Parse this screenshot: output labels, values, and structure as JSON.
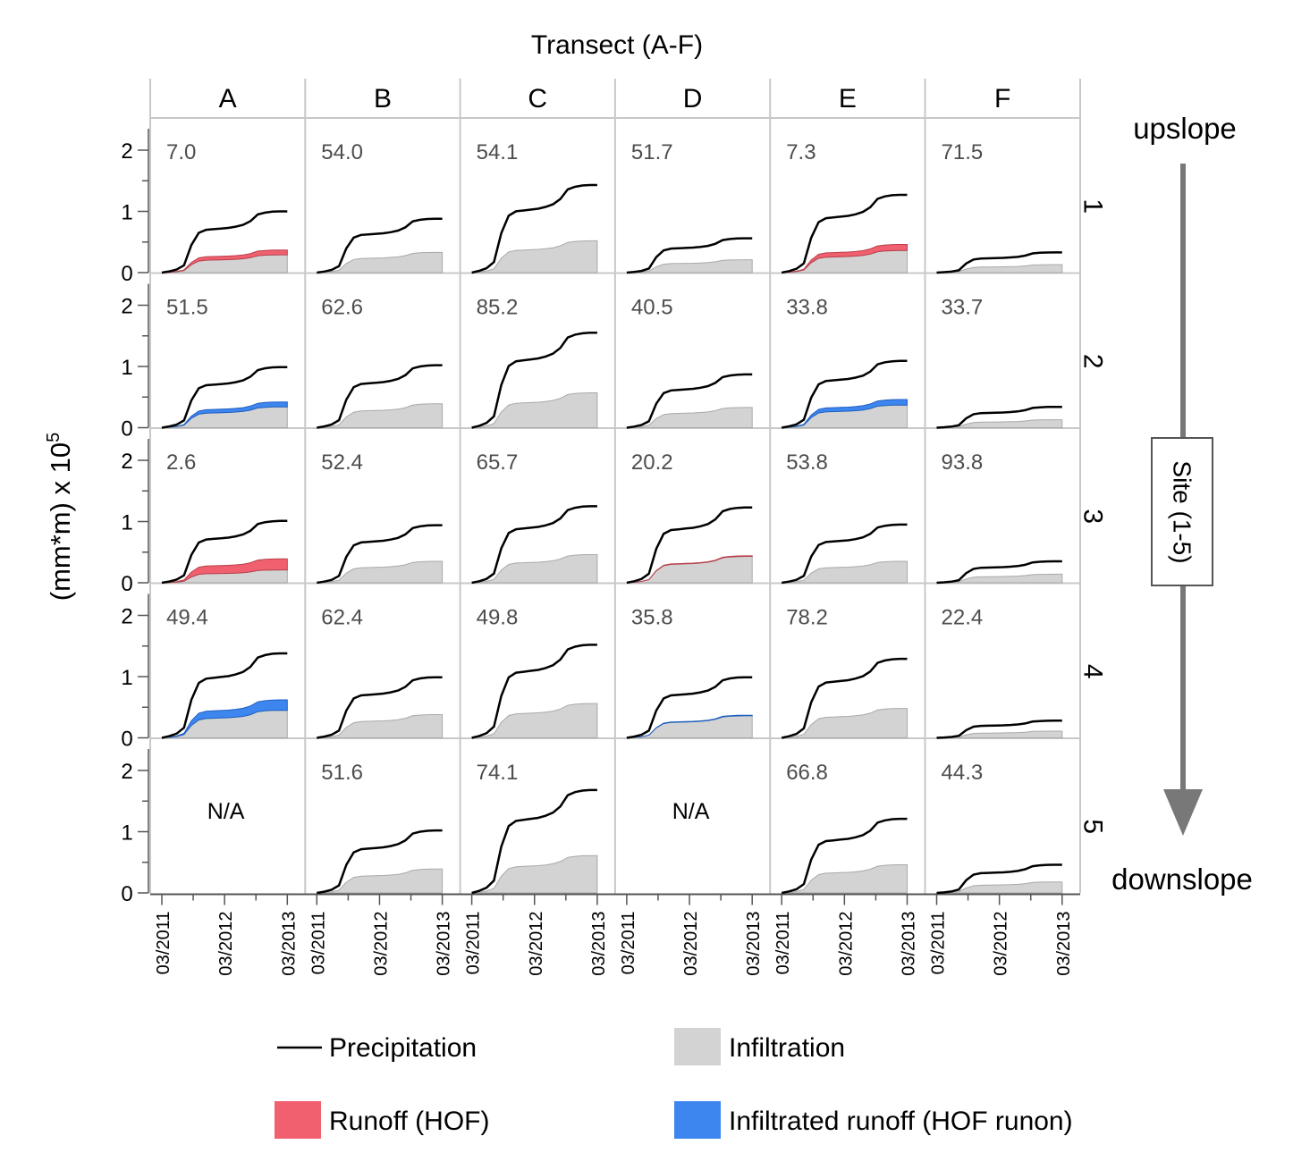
{
  "chart_data": {
    "type": "area",
    "title": "Transect (A-F)",
    "ylabel": "(mm*m) x 10",
    "ylabel_exponent": "5",
    "yticks": [
      "0",
      "1",
      "2"
    ],
    "ylim": [
      0,
      2.5
    ],
    "xtick_labels": [
      "03/2011",
      "03/2012",
      "03/2013"
    ],
    "transects": [
      "A",
      "B",
      "C",
      "D",
      "E",
      "F"
    ],
    "sites": [
      "1",
      "2",
      "3",
      "4",
      "5"
    ],
    "site_axis_label": "Site (1-5)",
    "upslope_label": "upslope",
    "downslope_label": "downslope",
    "na_label": "N/A",
    "curve_profile": [
      0,
      0.02,
      0.05,
      0.12,
      0.45,
      0.65,
      0.7,
      0.71,
      0.72,
      0.73,
      0.75,
      0.78,
      0.84,
      0.95,
      0.98,
      0.995,
      1.0,
      1.0
    ],
    "legend": {
      "precipitation": "Precipitation",
      "infiltration": "Infiltration",
      "runoff": "Runoff (HOF)",
      "runon": "Infiltrated runoff (HOF runon)"
    },
    "colors": {
      "precipitation": "#000000",
      "infiltration": "#d3d3d3",
      "runoff": "#f0606e",
      "runon": "#3d86f0",
      "frame": "#c8c8c8",
      "value_text": "#4d4d4d",
      "arrow": "#787878"
    },
    "panels": [
      [
        {
          "label": "7.0",
          "precip": 1.0,
          "infil": 0.29,
          "top": 0.37,
          "type": "runoff"
        },
        {
          "label": "54.0",
          "precip": 0.88,
          "infil": 0.33,
          "top": 0.33,
          "type": "none"
        },
        {
          "label": "54.1",
          "precip": 1.43,
          "infil": 0.52,
          "top": 0.52,
          "type": "none"
        },
        {
          "label": "51.7",
          "precip": 0.56,
          "infil": 0.21,
          "top": 0.21,
          "type": "none"
        },
        {
          "label": "7.3",
          "precip": 1.27,
          "infil": 0.36,
          "top": 0.46,
          "type": "runoff"
        },
        {
          "label": "71.5",
          "precip": 0.33,
          "infil": 0.13,
          "top": 0.13,
          "type": "none"
        }
      ],
      [
        {
          "label": "51.5",
          "precip": 0.99,
          "infil": 0.34,
          "top": 0.42,
          "type": "runon"
        },
        {
          "label": "62.6",
          "precip": 1.02,
          "infil": 0.39,
          "top": 0.39,
          "type": "none"
        },
        {
          "label": "85.2",
          "precip": 1.55,
          "infil": 0.57,
          "top": 0.57,
          "type": "none"
        },
        {
          "label": "40.5",
          "precip": 0.87,
          "infil": 0.33,
          "top": 0.33,
          "type": "none"
        },
        {
          "label": "33.8",
          "precip": 1.09,
          "infil": 0.37,
          "top": 0.46,
          "type": "runon"
        },
        {
          "label": "33.7",
          "precip": 0.34,
          "infil": 0.13,
          "top": 0.13,
          "type": "none"
        }
      ],
      [
        {
          "label": "2.6",
          "precip": 1.01,
          "infil": 0.21,
          "top": 0.39,
          "type": "runoff"
        },
        {
          "label": "52.4",
          "precip": 0.94,
          "infil": 0.35,
          "top": 0.35,
          "type": "none"
        },
        {
          "label": "65.7",
          "precip": 1.25,
          "infil": 0.46,
          "top": 0.46,
          "type": "none"
        },
        {
          "label": "20.2",
          "precip": 1.23,
          "infil": 0.43,
          "top": 0.44,
          "type": "runoff"
        },
        {
          "label": "53.8",
          "precip": 0.95,
          "infil": 0.35,
          "top": 0.35,
          "type": "none"
        },
        {
          "label": "93.8",
          "precip": 0.35,
          "infil": 0.14,
          "top": 0.14,
          "type": "none"
        }
      ],
      [
        {
          "label": "49.4",
          "precip": 1.38,
          "infil": 0.45,
          "top": 0.62,
          "type": "runon"
        },
        {
          "label": "62.4",
          "precip": 0.99,
          "infil": 0.38,
          "top": 0.38,
          "type": "none"
        },
        {
          "label": "49.8",
          "precip": 1.52,
          "infil": 0.56,
          "top": 0.56,
          "type": "none"
        },
        {
          "label": "35.8",
          "precip": 0.99,
          "infil": 0.36,
          "top": 0.37,
          "type": "runon"
        },
        {
          "label": "78.2",
          "precip": 1.29,
          "infil": 0.48,
          "top": 0.48,
          "type": "none"
        },
        {
          "label": "22.4",
          "precip": 0.28,
          "infil": 0.11,
          "top": 0.11,
          "type": "none"
        }
      ],
      [
        {
          "label": "",
          "precip": 0,
          "infil": 0,
          "top": 0,
          "type": "na"
        },
        {
          "label": "51.6",
          "precip": 1.02,
          "infil": 0.39,
          "top": 0.39,
          "type": "none"
        },
        {
          "label": "74.1",
          "precip": 1.68,
          "infil": 0.61,
          "top": 0.61,
          "type": "none"
        },
        {
          "label": "",
          "precip": 0,
          "infil": 0,
          "top": 0,
          "type": "na"
        },
        {
          "label": "66.8",
          "precip": 1.21,
          "infil": 0.46,
          "top": 0.46,
          "type": "none"
        },
        {
          "label": "44.3",
          "precip": 0.46,
          "infil": 0.18,
          "top": 0.18,
          "type": "none"
        }
      ]
    ]
  }
}
